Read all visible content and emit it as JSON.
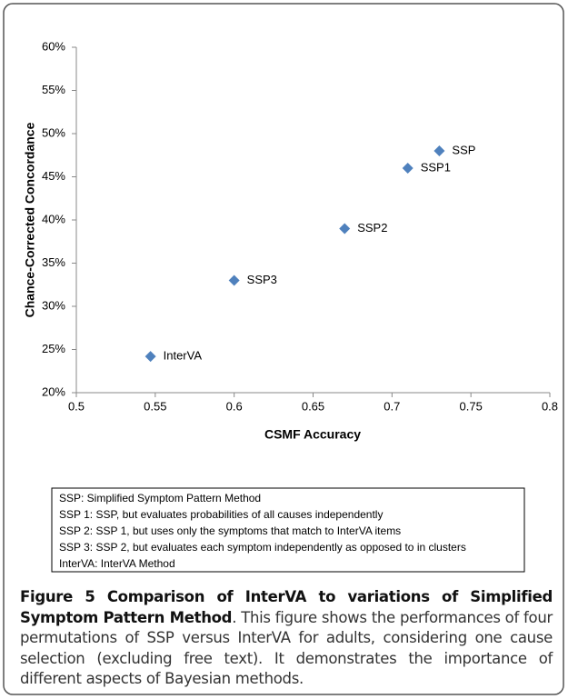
{
  "chart_data": {
    "type": "scatter",
    "x": [
      0.73,
      0.71,
      0.67,
      0.6,
      0.547
    ],
    "values": [
      48,
      46,
      39,
      33,
      24.2
    ],
    "point_labels": [
      "SSP",
      "SSP1",
      "SSP2",
      "SSP3",
      "InterVA"
    ],
    "color": "#4f81bd",
    "xlabel": "CSMF Accuracy",
    "ylabel": "Chance-Corrected Concordance",
    "xlim": [
      0.5,
      0.8
    ],
    "xticks": [
      0.5,
      0.55,
      0.6,
      0.65,
      0.7,
      0.75,
      0.8
    ],
    "ylim": [
      20,
      60
    ],
    "yticks": [
      {
        "value": 20,
        "label": "20%"
      },
      {
        "value": 25,
        "label": "25%"
      },
      {
        "value": 30,
        "label": "30%"
      },
      {
        "value": 35,
        "label": "35%"
      },
      {
        "value": 40,
        "label": "40%"
      },
      {
        "value": 45,
        "label": "45%"
      },
      {
        "value": 50,
        "label": "50%"
      },
      {
        "value": 55,
        "label": "55%"
      },
      {
        "value": 60,
        "label": "60%"
      }
    ],
    "grid": false,
    "notes": [
      "SSP: Simplified Symptom Pattern Method",
      "SSP 1: SSP, but evaluates probabilities of all causes independently",
      "SSP 2: SSP 1, but uses only the symptoms that match to InterVA items",
      "SSP 3: SSP 2, but evaluates each symptom independently as opposed to in clusters",
      "InterVA: InterVA Method"
    ]
  },
  "caption": {
    "title": "Figure 5 Comparison of InterVA to variations of Simplified Symptom Pattern Method",
    "text": ". This figure shows the performances of four permutations of SSP versus InterVA for adults, considering one cause selection (excluding free text). It demonstrates the importance of different aspects of Bayesian methods."
  }
}
